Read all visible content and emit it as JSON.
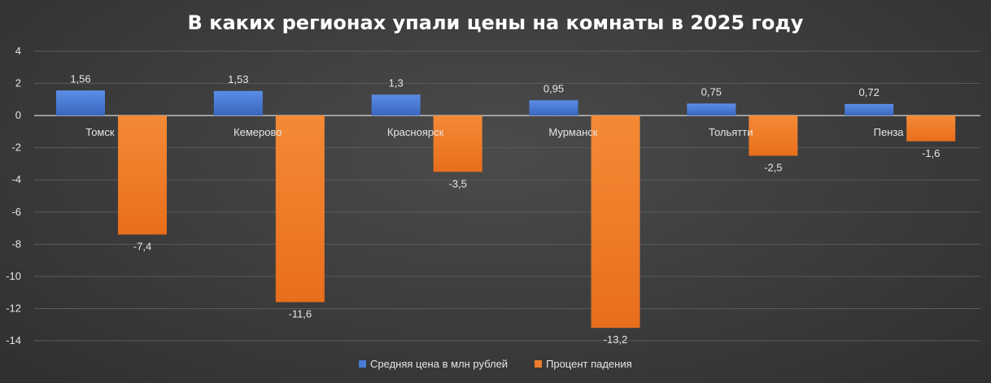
{
  "chart_data": {
    "type": "bar",
    "title": "В каких регионах упали цены на комнаты в 2025 году",
    "categories": [
      "Томск",
      "Кемерово",
      "Красноярск",
      "Мурманск",
      "Тольятти",
      "Пенза"
    ],
    "series": [
      {
        "name": "Средняя цена в млн рублей",
        "values": [
          1.56,
          1.53,
          1.3,
          0.95,
          0.75,
          0.72
        ],
        "labels": [
          "1,56",
          "1,53",
          "1,3",
          "0,95",
          "0,75",
          "0,72"
        ],
        "color": "#4a7bd4"
      },
      {
        "name": "Процент падения",
        "values": [
          -7.4,
          -11.6,
          -3.5,
          -13.2,
          -2.5,
          -1.6
        ],
        "labels": [
          "-7,4",
          "-11,6",
          "-3,5",
          "-13,2",
          "-2,5",
          "-1,6"
        ],
        "color": "#ef7d2b"
      }
    ],
    "ylim": [
      -14,
      4
    ],
    "yticks": [
      4,
      2,
      0,
      -2,
      -4,
      -6,
      -8,
      -10,
      -12,
      -14
    ],
    "ytick_labels": [
      "4",
      "2",
      "0",
      "-2",
      "-4",
      "-6",
      "-8",
      "-10",
      "-12",
      "-14"
    ],
    "xlabel": "",
    "ylabel": "",
    "grid": true,
    "legend": "bottom"
  }
}
